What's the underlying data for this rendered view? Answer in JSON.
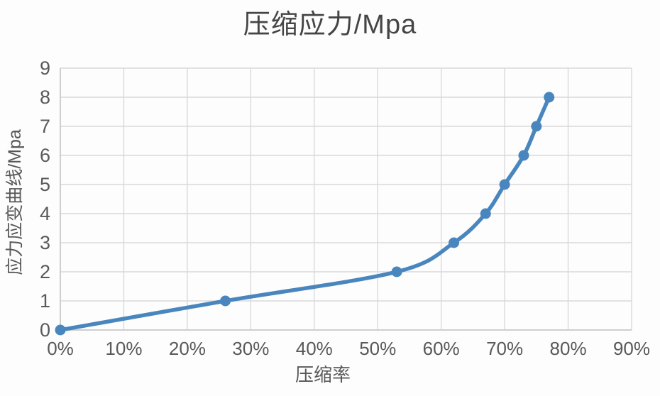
{
  "chart_data": {
    "type": "line",
    "title": "压缩应力/Mpa",
    "xlabel": "压缩率",
    "ylabel": "应力应变曲线/Mpa",
    "series": [
      {
        "name": "压缩应力",
        "x_percent": [
          0,
          26,
          53,
          62,
          67,
          70,
          73,
          75,
          77
        ],
        "values": [
          0,
          1,
          2,
          3,
          4,
          5,
          6,
          7,
          8
        ]
      }
    ],
    "xlim": [
      0,
      90
    ],
    "ylim": [
      0,
      9
    ],
    "xticks": [
      0,
      10,
      20,
      30,
      40,
      50,
      60,
      70,
      80,
      90
    ],
    "xtick_labels": [
      "0%",
      "10%",
      "20%",
      "30%",
      "40%",
      "50%",
      "60%",
      "70%",
      "80%",
      "90%"
    ],
    "yticks": [
      0,
      1,
      2,
      3,
      4,
      5,
      6,
      7,
      8,
      9
    ],
    "ytick_labels": [
      "0",
      "1",
      "2",
      "3",
      "4",
      "5",
      "6",
      "7",
      "8",
      "9"
    ],
    "grid": "both",
    "legend_position": "none",
    "line_smooth": true,
    "marker_shape": "circle",
    "colors": {
      "line": "#4a86be",
      "marker": "#4a86be",
      "grid": "#d9d9d9",
      "axis": "#c6c6c6",
      "tick_text": "#595959",
      "title_text": "#454545",
      "background": "#fdfdfd"
    }
  }
}
